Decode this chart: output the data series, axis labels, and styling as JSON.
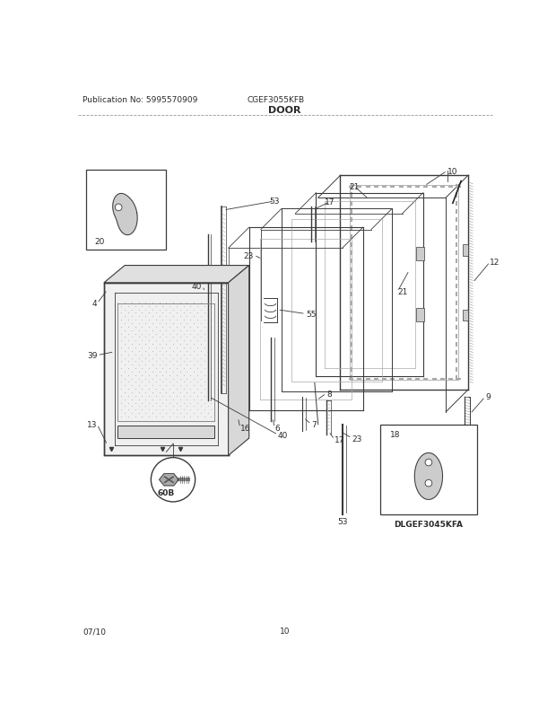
{
  "title": "DOOR",
  "pub_no": "Publication No: 5995570909",
  "model": "CGEF3055KFB",
  "date": "07/10",
  "page": "10",
  "alt_model": "DLGEF3045KFA",
  "bg_color": "#ffffff",
  "text_color": "#2a2a2a",
  "line_color": "#3a3a3a",
  "light_gray": "#aaaaaa",
  "mid_gray": "#888888",
  "dot_gray": "#cccccc"
}
